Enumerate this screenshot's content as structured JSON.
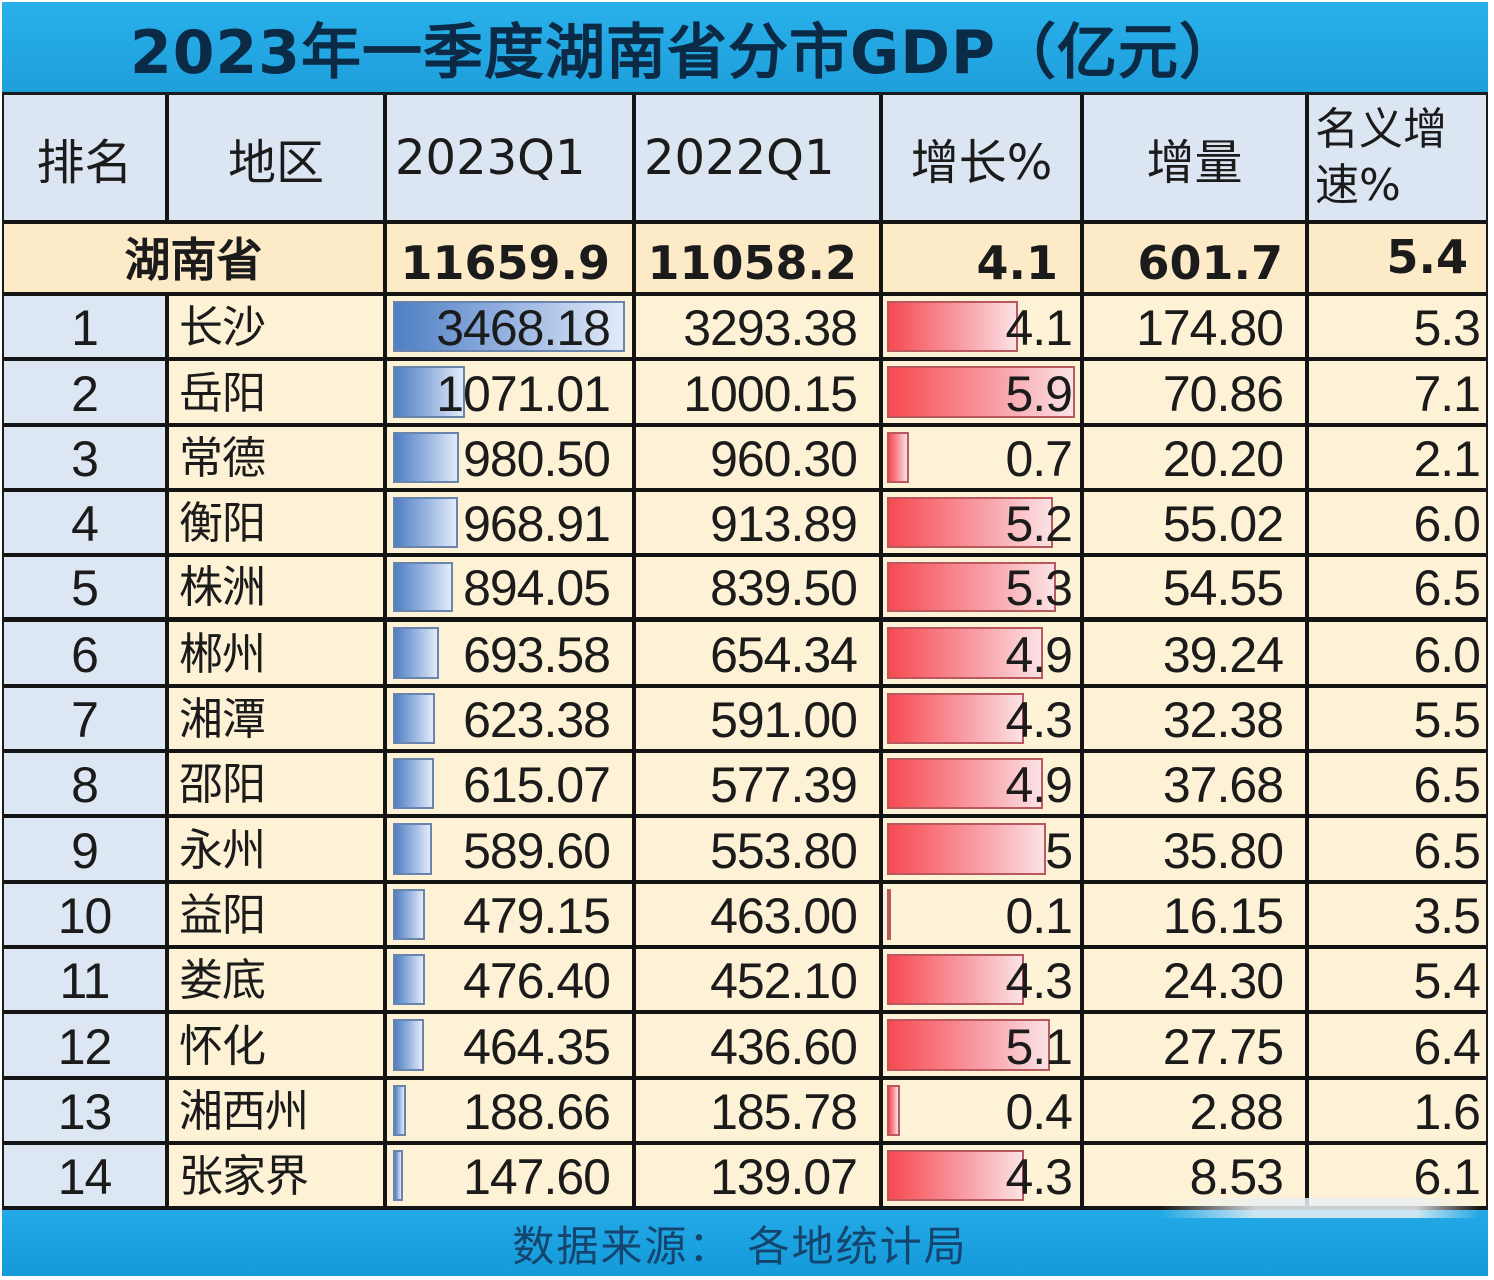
{
  "title": "2023年一季度湖南省分市GDP（亿元）",
  "columns": {
    "rank": "排名",
    "region": "地区",
    "q2023": "2023Q1",
    "q2022": "2022Q1",
    "growth": "增长%",
    "increment": "增量",
    "nominal_line1": "名义增",
    "nominal_line2": "速%"
  },
  "province": {
    "name": "湖南省",
    "q2023": "11659.9",
    "q2022": "11058.2",
    "growth": "4.1",
    "increment": "601.7",
    "nominal": "5.4"
  },
  "rows": [
    {
      "rank": "1",
      "region": "长沙",
      "q2023": "3468.18",
      "q2022": "3293.38",
      "growth": "4.1",
      "increment": "174.80",
      "nominal": "5.3"
    },
    {
      "rank": "2",
      "region": "岳阳",
      "q2023": "1071.01",
      "q2022": "1000.15",
      "growth": "5.9",
      "increment": "70.86",
      "nominal": "7.1"
    },
    {
      "rank": "3",
      "region": "常德",
      "q2023": "980.50",
      "q2022": "960.30",
      "growth": "0.7",
      "increment": "20.20",
      "nominal": "2.1"
    },
    {
      "rank": "4",
      "region": "衡阳",
      "q2023": "968.91",
      "q2022": "913.89",
      "growth": "5.2",
      "increment": "55.02",
      "nominal": "6.0"
    },
    {
      "rank": "5",
      "region": "株洲",
      "q2023": "894.05",
      "q2022": "839.50",
      "growth": "5.3",
      "increment": "54.55",
      "nominal": "6.5"
    },
    {
      "rank": "6",
      "region": "郴州",
      "q2023": "693.58",
      "q2022": "654.34",
      "growth": "4.9",
      "increment": "39.24",
      "nominal": "6.0"
    },
    {
      "rank": "7",
      "region": "湘潭",
      "q2023": "623.38",
      "q2022": "591.00",
      "growth": "4.3",
      "increment": "32.38",
      "nominal": "5.5"
    },
    {
      "rank": "8",
      "region": "邵阳",
      "q2023": "615.07",
      "q2022": "577.39",
      "growth": "4.9",
      "increment": "37.68",
      "nominal": "6.5"
    },
    {
      "rank": "9",
      "region": "永州",
      "q2023": "589.60",
      "q2022": "553.80",
      "growth": "5",
      "increment": "35.80",
      "nominal": "6.5"
    },
    {
      "rank": "10",
      "region": "益阳",
      "q2023": "479.15",
      "q2022": "463.00",
      "growth": "0.1",
      "increment": "16.15",
      "nominal": "3.5"
    },
    {
      "rank": "11",
      "region": "娄底",
      "q2023": "476.40",
      "q2022": "452.10",
      "growth": "4.3",
      "increment": "24.30",
      "nominal": "5.4"
    },
    {
      "rank": "12",
      "region": "怀化",
      "q2023": "464.35",
      "q2022": "436.60",
      "growth": "5.1",
      "increment": "27.75",
      "nominal": "6.4"
    },
    {
      "rank": "13",
      "region": "湘西州",
      "q2023": "188.66",
      "q2022": "185.78",
      "growth": "0.4",
      "increment": "2.88",
      "nominal": "1.6"
    },
    {
      "rank": "14",
      "region": "张家界",
      "q2023": "147.60",
      "q2022": "139.07",
      "growth": "4.3",
      "increment": "8.53",
      "nominal": "6.1"
    }
  ],
  "footer": "数据来源：  各地统计局",
  "colors": {
    "title_bar": "#1ea3e0",
    "header_bg": "#dce6f2",
    "row_bg": "#fdf2d5",
    "province_bg": "#fdebc8",
    "blue_databar": "#4f7fc4",
    "red_databar": "#f74a51"
  }
}
